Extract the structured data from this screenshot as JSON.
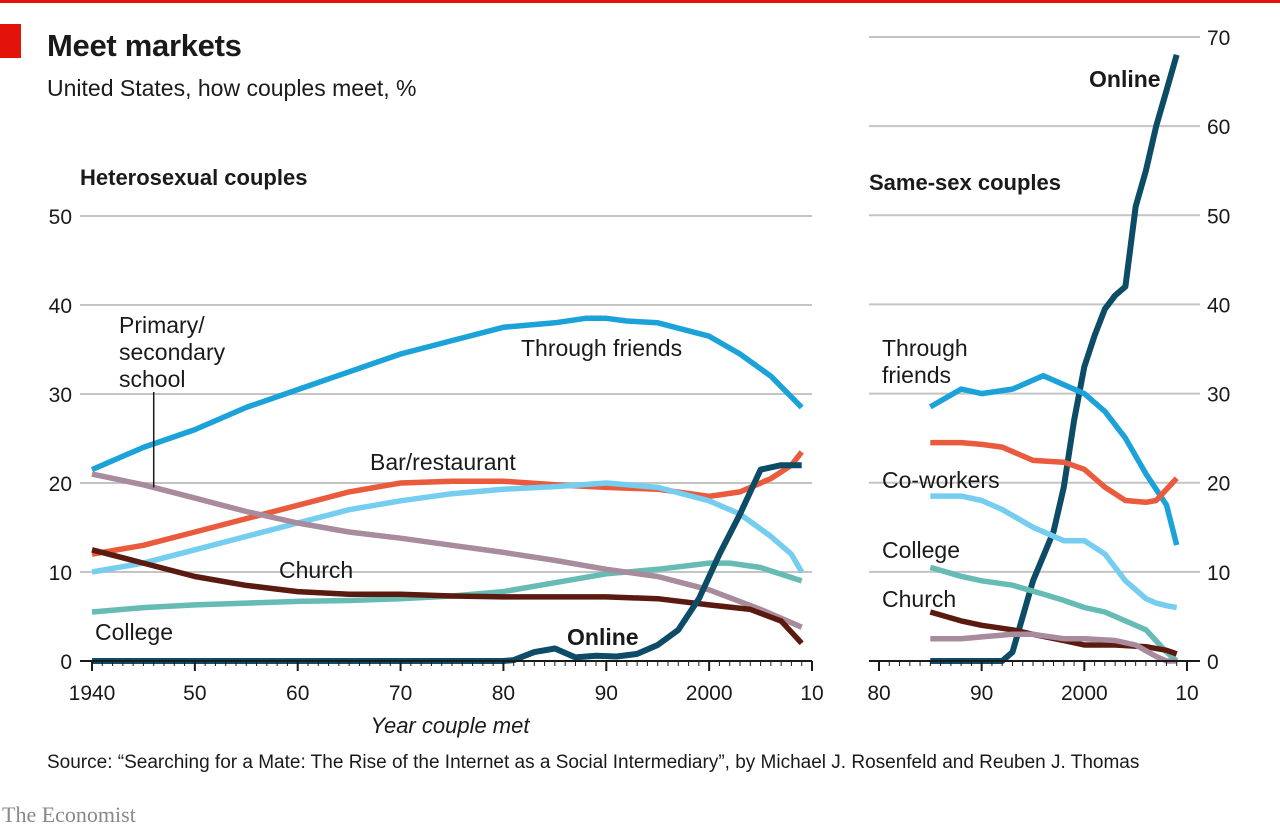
{
  "header": {
    "title": "Meet markets",
    "subtitle": "United States, how couples meet, %",
    "source": "Source: “Searching for a Mate: The Rise of the Internet as a Social Intermediary”, by Michael J. Rosenfeld and Reuben J. Thomas",
    "brand": "The Economist"
  },
  "colors": {
    "accent_red": "#e3120b",
    "through_friends": "#1ba3d9",
    "bar_restaurant": "#ea5a3c",
    "coworkers": "#75cdf0",
    "college": "#67bbb5",
    "primary_secondary_school": "#a88b9c",
    "church": "#5b1a10",
    "online": "#0c4c66",
    "gridline": "#c4c4c4"
  },
  "chart_data": [
    {
      "type": "line",
      "title": "Heterosexual couples",
      "xlabel": "Year couple met",
      "ylabel": "",
      "xlim": [
        1940,
        2010
      ],
      "ylim": [
        0,
        50
      ],
      "grid": true,
      "x_ticks": [
        "1940",
        "50",
        "60",
        "70",
        "80",
        "90",
        "2000",
        "10"
      ],
      "y_ticks": [
        "0",
        "10",
        "20",
        "30",
        "40",
        "50"
      ],
      "series": [
        {
          "name": "Through friends",
          "key": "through_friends",
          "x": [
            1940,
            1945,
            1950,
            1955,
            1960,
            1965,
            1970,
            1975,
            1980,
            1985,
            1988,
            1990,
            1992,
            1995,
            2000,
            2003,
            2006,
            2009
          ],
          "y": [
            21.5,
            24.0,
            26.0,
            28.5,
            30.5,
            32.5,
            34.5,
            36.0,
            37.5,
            38.0,
            38.5,
            38.5,
            38.2,
            38.0,
            36.5,
            34.5,
            32.0,
            28.5
          ]
        },
        {
          "name": "Bar/restaurant",
          "key": "bar_restaurant",
          "x": [
            1940,
            1945,
            1950,
            1955,
            1960,
            1965,
            1970,
            1975,
            1980,
            1985,
            1990,
            1995,
            2000,
            2003,
            2006,
            2008,
            2009
          ],
          "y": [
            12.0,
            13.0,
            14.5,
            16.0,
            17.5,
            19.0,
            20.0,
            20.2,
            20.2,
            19.8,
            19.5,
            19.3,
            18.5,
            19.0,
            20.5,
            22.0,
            23.5
          ]
        },
        {
          "name": "Co-workers",
          "key": "coworkers",
          "x": [
            1940,
            1945,
            1950,
            1955,
            1960,
            1965,
            1970,
            1975,
            1980,
            1985,
            1990,
            1995,
            2000,
            2003,
            2006,
            2008,
            2009
          ],
          "y": [
            10.0,
            11.0,
            12.5,
            14.0,
            15.5,
            17.0,
            18.0,
            18.8,
            19.3,
            19.6,
            20.0,
            19.5,
            18.0,
            16.5,
            14.0,
            12.0,
            10.0
          ]
        },
        {
          "name": "College",
          "key": "college",
          "x": [
            1940,
            1945,
            1950,
            1955,
            1960,
            1965,
            1970,
            1975,
            1980,
            1985,
            1990,
            1995,
            2000,
            2002,
            2005,
            2009
          ],
          "y": [
            5.5,
            6.0,
            6.3,
            6.5,
            6.7,
            6.8,
            7.0,
            7.3,
            7.8,
            8.8,
            9.8,
            10.3,
            11.0,
            11.0,
            10.5,
            9.0
          ]
        },
        {
          "name": "Primary/ secondary school",
          "key": "primary_secondary_school",
          "x": [
            1940,
            1945,
            1950,
            1955,
            1960,
            1965,
            1970,
            1975,
            1980,
            1985,
            1990,
            1995,
            2000,
            2005,
            2009
          ],
          "y": [
            21.0,
            19.8,
            18.3,
            16.8,
            15.5,
            14.5,
            13.8,
            13.0,
            12.2,
            11.3,
            10.3,
            9.5,
            8.0,
            5.8,
            3.8
          ]
        },
        {
          "name": "Church",
          "key": "church",
          "x": [
            1940,
            1945,
            1950,
            1955,
            1960,
            1965,
            1970,
            1975,
            1980,
            1985,
            1990,
            1995,
            2000,
            2004,
            2007,
            2009
          ],
          "y": [
            12.5,
            11.0,
            9.5,
            8.5,
            7.8,
            7.5,
            7.5,
            7.3,
            7.2,
            7.2,
            7.2,
            7.0,
            6.3,
            5.8,
            4.5,
            2.0
          ]
        },
        {
          "name": "Online",
          "key": "online",
          "x": [
            1940,
            1960,
            1980,
            1981,
            1983,
            1985,
            1987,
            1989,
            1991,
            1993,
            1995,
            1997,
            1999,
            2001,
            2003,
            2005,
            2007,
            2009
          ],
          "y": [
            0,
            0,
            0,
            0.1,
            1.0,
            1.4,
            0.4,
            0.6,
            0.5,
            0.8,
            1.8,
            3.5,
            7.0,
            12.0,
            16.5,
            21.5,
            22.0,
            22.0
          ]
        }
      ]
    },
    {
      "type": "line",
      "title": "Same-sex couples",
      "xlabel": "",
      "ylabel": "",
      "xlim": [
        1980,
        2010
      ],
      "ylim": [
        0,
        70
      ],
      "grid": true,
      "x_ticks": [
        "80",
        "90",
        "2000",
        "10"
      ],
      "y_ticks": [
        "0",
        "10",
        "20",
        "30",
        "40",
        "50",
        "60",
        "70"
      ],
      "series": [
        {
          "name": "Online",
          "key": "online",
          "x": [
            1985,
            1990,
            1992,
            1993,
            1995,
            1997,
            1998,
            1999,
            2000,
            2001,
            2002,
            2003,
            2004,
            2005,
            2006,
            2007,
            2008,
            2009
          ],
          "y": [
            0,
            0,
            0,
            1.0,
            9.0,
            14.5,
            19.5,
            27.0,
            33.0,
            36.5,
            39.5,
            41.0,
            42.0,
            51.0,
            55.0,
            60.0,
            64.0,
            68.0
          ]
        },
        {
          "name": "Through friends",
          "key": "through_friends",
          "x": [
            1985,
            1988,
            1990,
            1993,
            1996,
            1998,
            2000,
            2002,
            2004,
            2006,
            2008,
            2009
          ],
          "y": [
            28.5,
            30.5,
            30.0,
            30.5,
            32.0,
            31.0,
            30.0,
            28.0,
            25.0,
            21.0,
            17.5,
            13.0
          ]
        },
        {
          "name": "Co-workers",
          "key": "bar_restaurant",
          "x": [
            1985,
            1988,
            1990,
            1992,
            1995,
            1998,
            2000,
            2002,
            2004,
            2006,
            2007,
            2009
          ],
          "y": [
            24.5,
            24.5,
            24.3,
            24.0,
            22.5,
            22.3,
            21.5,
            19.5,
            18.0,
            17.8,
            18.0,
            20.5
          ]
        },
        {
          "name": "College",
          "key": "coworkers",
          "x": [
            1985,
            1988,
            1990,
            1992,
            1995,
            1998,
            2000,
            2002,
            2004,
            2006,
            2007,
            2008,
            2009
          ],
          "y": [
            18.5,
            18.5,
            18.0,
            17.0,
            15.0,
            13.5,
            13.5,
            12.0,
            9.0,
            7.0,
            6.5,
            6.2,
            6.0
          ]
        },
        {
          "name": "Church",
          "key": "college",
          "x": [
            1985,
            1988,
            1990,
            1993,
            1996,
            1998,
            2000,
            2002,
            2004,
            2006,
            2008,
            2009
          ],
          "y": [
            10.5,
            9.5,
            9.0,
            8.5,
            7.5,
            6.8,
            6.0,
            5.5,
            4.5,
            3.5,
            1.0,
            0.0
          ]
        },
        {
          "name": "",
          "key": "church",
          "x": [
            1985,
            1988,
            1990,
            1993,
            1995,
            1998,
            2000,
            2003,
            2006,
            2008,
            2009
          ],
          "y": [
            5.5,
            4.5,
            4.0,
            3.5,
            3.0,
            2.3,
            1.8,
            1.8,
            1.6,
            1.2,
            0.8
          ]
        },
        {
          "name": "",
          "key": "primary_secondary_school",
          "x": [
            1985,
            1988,
            1990,
            1993,
            1995,
            1998,
            2000,
            2003,
            2005,
            2007,
            2008,
            2009
          ],
          "y": [
            2.5,
            2.5,
            2.7,
            3.0,
            3.0,
            2.5,
            2.5,
            2.3,
            1.8,
            0.5,
            0.0,
            0.0
          ]
        }
      ]
    }
  ]
}
